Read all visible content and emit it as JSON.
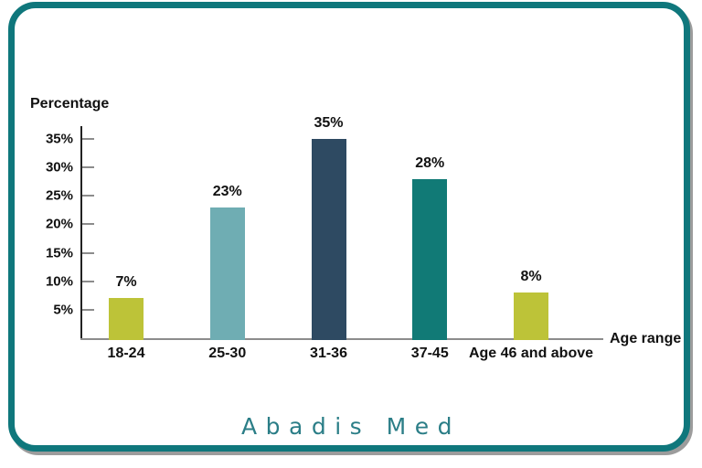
{
  "card": {
    "border_color": "#0f777c",
    "background_color": "#ffffff"
  },
  "brand": {
    "name": "Abadis Med",
    "color": "#2b7e87"
  },
  "chart_data": {
    "type": "bar",
    "title": "",
    "xlabel": "Age range",
    "ylabel": "Percentage",
    "categories": [
      "18-24",
      "25-30",
      "31-36",
      "37-45",
      "Age 46 and above"
    ],
    "values": [
      7,
      23,
      35,
      28,
      8
    ],
    "value_labels": [
      "7%",
      "23%",
      "35%",
      "28%",
      "8%"
    ],
    "bar_colors": [
      "#bdc338",
      "#6fadb3",
      "#2e4a62",
      "#117a76",
      "#bdc338"
    ],
    "ylim": [
      0,
      37.5
    ],
    "yticks": [
      5,
      10,
      15,
      20,
      25,
      30,
      35
    ],
    "ytick_labels": [
      "5%",
      "10%",
      "15%",
      "20%",
      "25%",
      "30%",
      "35%"
    ],
    "grid": false,
    "legend": false,
    "axis_color": "#222222",
    "tick_color": "#8c8c8c"
  }
}
